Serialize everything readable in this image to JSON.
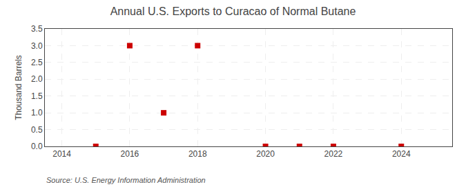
{
  "chart_data": {
    "type": "scatter",
    "title": "Annual U.S. Exports to Curacao of Normal Butane",
    "ylabel": "Thousand Barrels",
    "annotations": [
      "Source: U.S. Energy Information Administration"
    ],
    "x": [
      2015,
      2016,
      2017,
      2018,
      2020,
      2021,
      2022,
      2024
    ],
    "values": [
      0,
      3.0,
      1.0,
      3.0,
      0,
      0,
      0,
      0
    ],
    "color": "#cc0000",
    "marker": "square",
    "xlim": [
      2013.5,
      2025.5
    ],
    "ylim": [
      0.0,
      3.5
    ],
    "xticks": [
      2014,
      2016,
      2018,
      2020,
      2022,
      2024
    ],
    "yticks": [
      {
        "value": 0.0,
        "label": "0.0"
      },
      0.5,
      {
        "value": 1.0,
        "label": "1.0"
      },
      1.5,
      {
        "value": 2.0,
        "label": "2.0"
      },
      2.5,
      {
        "value": 3.0,
        "label": "3.0"
      },
      3.5
    ],
    "grid": true
  }
}
